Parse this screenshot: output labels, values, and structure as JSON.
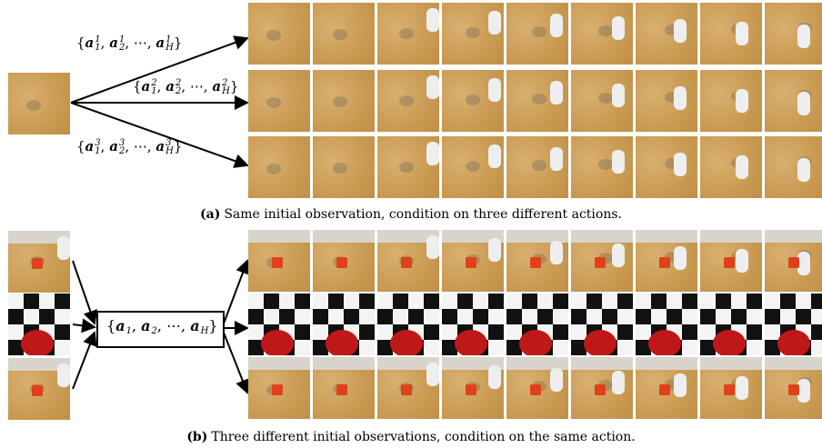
{
  "panel_a": {
    "caption_label": "(a)",
    "caption": "Same initial observation, condition on three different actions.",
    "action_sets": [
      [
        "{",
        {
          "base": "a",
          "sub": "1",
          "sup": "1"
        },
        ", ",
        {
          "base": "a",
          "sub": "2",
          "sup": "1"
        },
        ", ",
        "⋯",
        ", ",
        {
          "base": "a",
          "sub": "H",
          "sup": "1"
        },
        "}"
      ],
      [
        "{",
        {
          "base": "a",
          "sub": "1",
          "sup": "2"
        },
        ", ",
        {
          "base": "a",
          "sub": "2",
          "sup": "2"
        },
        ", ",
        "⋯",
        ", ",
        {
          "base": "a",
          "sub": "H",
          "sup": "2"
        },
        "}"
      ],
      [
        "{",
        {
          "base": "a",
          "sub": "1",
          "sup": "3"
        },
        ", ",
        {
          "base": "a",
          "sub": "2",
          "sup": "3"
        },
        ", ",
        "⋯",
        ", ",
        {
          "base": "a",
          "sub": "H",
          "sup": "3"
        },
        "}"
      ]
    ]
  },
  "panel_b": {
    "caption_label": "(b)",
    "caption": "Three different initial observations, condition on the same action.",
    "action_set": [
      "{",
      {
        "base": "a",
        "sub": "1"
      },
      ", ",
      {
        "base": "a",
        "sub": "2"
      },
      ", ",
      "⋯",
      ", ",
      {
        "base": "a",
        "sub": "H"
      },
      "}"
    ]
  }
}
